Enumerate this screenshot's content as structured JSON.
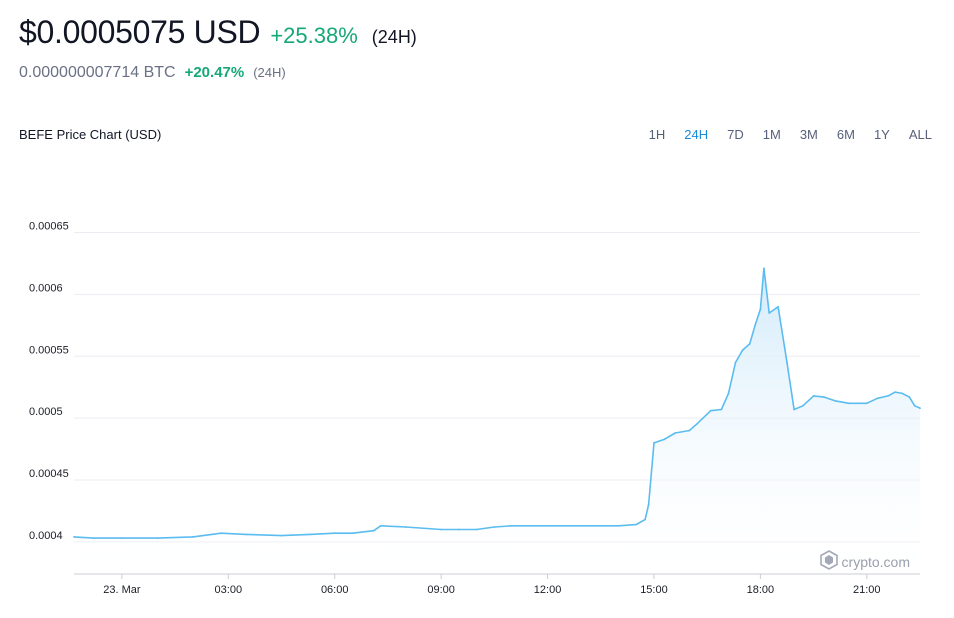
{
  "header": {
    "price": "$0.0005075 USD",
    "change": "+25.38%",
    "period": "(24H)",
    "btc_value": "0.000000007714 BTC",
    "btc_change": "+20.47%",
    "btc_period": "(24H)"
  },
  "chart_title": "BEFE Price Chart (USD)",
  "range_tabs": [
    "1H",
    "24H",
    "7D",
    "1M",
    "3M",
    "6M",
    "1Y",
    "ALL"
  ],
  "active_range": "24H",
  "watermark": "crypto.com",
  "colors": {
    "line": "#5bbcef",
    "fill_top": "#cfe9fa",
    "positive": "#16a878",
    "active_tab": "#1a8ad8"
  },
  "chart_data": {
    "type": "area",
    "title": "BEFE Price Chart (USD)",
    "xlabel": "",
    "ylabel": "",
    "x_unit": "hours from 23. Mar 00:00",
    "ylim": [
      0.000374,
      0.000665
    ],
    "xlim": [
      -1.35,
      22.5
    ],
    "y_ticks": [
      {
        "value": 0.00065,
        "label": "0.00065"
      },
      {
        "value": 0.0006,
        "label": "0.0006"
      },
      {
        "value": 0.00055,
        "label": "0.00055"
      },
      {
        "value": 0.0005,
        "label": "0.0005"
      },
      {
        "value": 0.00045,
        "label": "0.00045"
      },
      {
        "value": 0.0004,
        "label": "0.0004"
      }
    ],
    "x_ticks": [
      {
        "value": 0,
        "label": "23. Mar"
      },
      {
        "value": 3,
        "label": "03:00"
      },
      {
        "value": 6,
        "label": "06:00"
      },
      {
        "value": 9,
        "label": "09:00"
      },
      {
        "value": 12,
        "label": "12:00"
      },
      {
        "value": 15,
        "label": "15:00"
      },
      {
        "value": 18,
        "label": "18:00"
      },
      {
        "value": 21,
        "label": "21:00"
      }
    ],
    "grid": true,
    "series": [
      {
        "x": [
          -1.35,
          -0.8,
          0,
          1,
          2,
          2.8,
          3.5,
          4.5,
          5.3,
          6,
          6.5,
          7.1,
          7.3,
          8,
          9,
          9.5,
          10,
          10.5,
          11,
          12,
          13,
          14,
          14.5,
          14.75,
          14.85,
          15,
          15.3,
          15.6,
          16,
          16.2,
          16.6,
          16.9,
          17.1,
          17.3,
          17.5,
          17.7,
          17.85,
          18,
          18.1,
          18.25,
          18.5,
          18.75,
          18.95,
          19.2,
          19.5,
          19.8,
          20.1,
          20.5,
          21,
          21.3,
          21.6,
          21.8,
          22,
          22.2,
          22.35,
          22.5
        ],
        "values": [
          0.000404,
          0.000403,
          0.000403,
          0.000403,
          0.000404,
          0.000407,
          0.000406,
          0.000405,
          0.000406,
          0.000407,
          0.000407,
          0.000409,
          0.000413,
          0.000412,
          0.00041,
          0.00041,
          0.00041,
          0.000412,
          0.000413,
          0.000413,
          0.000413,
          0.000413,
          0.000414,
          0.000418,
          0.00043,
          0.00048,
          0.000483,
          0.000488,
          0.00049,
          0.000495,
          0.000506,
          0.000507,
          0.00052,
          0.000545,
          0.000555,
          0.00056,
          0.000575,
          0.000588,
          0.000621,
          0.000585,
          0.00059,
          0.000545,
          0.000507,
          0.00051,
          0.000518,
          0.000517,
          0.000514,
          0.000512,
          0.000512,
          0.000516,
          0.000518,
          0.000521,
          0.00052,
          0.000517,
          0.00051,
          0.000508
        ]
      }
    ]
  }
}
